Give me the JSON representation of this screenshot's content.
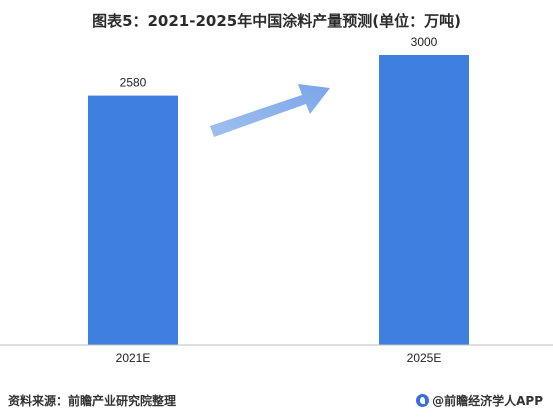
{
  "chart_data": {
    "type": "bar",
    "title": "图表5：2021-2025年中国涂料产量预测(单位：万吨)",
    "categories": [
      "2021E",
      "2025E"
    ],
    "values": [
      2580,
      3000
    ],
    "data_labels": [
      "2580",
      "3000"
    ],
    "ylim": [
      0,
      3300
    ],
    "grid": false,
    "legend": "none",
    "bar_color": "#3f7fe0",
    "arrow_color": "#8eb4ec",
    "axis_color": "#bfbfbf"
  },
  "footer": {
    "source": "资料来源：前瞻产业研究院整理",
    "brand": "@前瞻经济学人APP"
  }
}
